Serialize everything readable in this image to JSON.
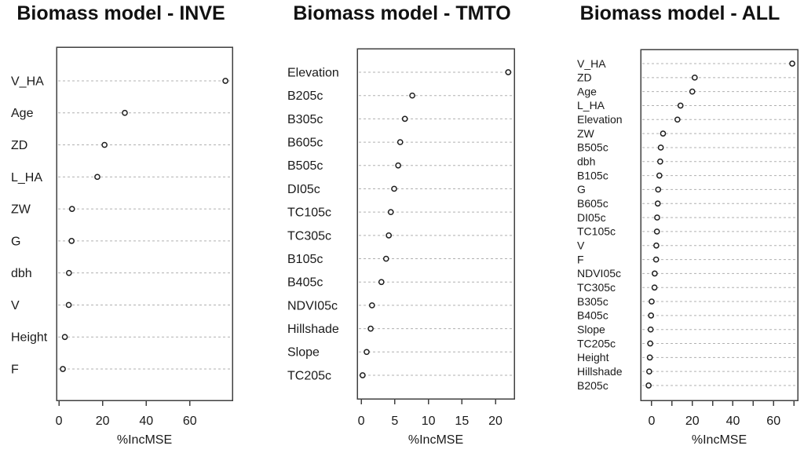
{
  "figure": {
    "background": "#ffffff",
    "text_color": "#1a1a1a",
    "grid_color": "#b0b0b0",
    "box_color": "#404040",
    "dot_stroke": "#1f1f1f",
    "dot_fill": "#ffffff"
  },
  "chart_data": [
    {
      "type": "scatter",
      "subtype": "horizontal-dot-importance-plot",
      "title": "Biomass model - INVE",
      "xlabel": "%IncMSE",
      "grid": "horizontal-dashed",
      "legend": "none",
      "categories": [
        "V_HA",
        "Age",
        "ZD",
        "L_HA",
        "ZW",
        "G",
        "dbh",
        "V",
        "Height",
        "F"
      ],
      "values": [
        76.3,
        30.2,
        20.9,
        17.6,
        6.0,
        5.8,
        4.6,
        4.5,
        2.7,
        1.8
      ],
      "xlim": [
        -1.1,
        79.5
      ],
      "xticks": [
        0,
        20,
        40,
        60
      ],
      "minor_xticks": []
    },
    {
      "type": "scatter",
      "subtype": "horizontal-dot-importance-plot",
      "title": "Biomass model - TMTO",
      "xlabel": "%IncMSE",
      "grid": "horizontal-dashed",
      "legend": "none",
      "categories": [
        "Elevation",
        "B205c",
        "B305c",
        "B605c",
        "B505c",
        "DI05c",
        "TC105c",
        "TC305c",
        "B105c",
        "B405c",
        "NDVI05c",
        "Hillshade",
        "Slope",
        "TC205c"
      ],
      "values": [
        21.9,
        7.6,
        6.5,
        5.8,
        5.5,
        4.9,
        4.4,
        4.1,
        3.7,
        3.0,
        1.6,
        1.4,
        0.8,
        0.2
      ],
      "xlim": [
        -0.6,
        22.8
      ],
      "xticks": [
        0,
        5,
        10,
        15,
        20
      ],
      "minor_xticks": []
    },
    {
      "type": "scatter",
      "subtype": "horizontal-dot-importance-plot",
      "title": "Biomass model - ALL",
      "xlabel": "%IncMSE",
      "grid": "horizontal-dashed",
      "legend": "none",
      "categories": [
        "V_HA",
        "ZD",
        "Age",
        "L_HA",
        "Elevation",
        "ZW",
        "B505c",
        "dbh",
        "B105c",
        "G",
        "B605c",
        "DI05c",
        "TC105c",
        "V",
        "F",
        "NDVI05c",
        "TC305c",
        "B305c",
        "B405c",
        "Slope",
        "TC205c",
        "Height",
        "Hillshade",
        "B205c"
      ],
      "values": [
        69.2,
        21.2,
        20.0,
        14.2,
        12.7,
        5.6,
        4.5,
        4.2,
        3.8,
        3.2,
        3.0,
        2.7,
        2.6,
        2.3,
        2.2,
        1.5,
        1.4,
        0.0,
        -0.3,
        -0.5,
        -0.7,
        -0.9,
        -1.2,
        -1.5
      ],
      "xlim": [
        -5.4,
        71.9
      ],
      "xticks": [
        0,
        20,
        40,
        60
      ],
      "minor_xticks": [
        10,
        30,
        50,
        70
      ]
    }
  ]
}
